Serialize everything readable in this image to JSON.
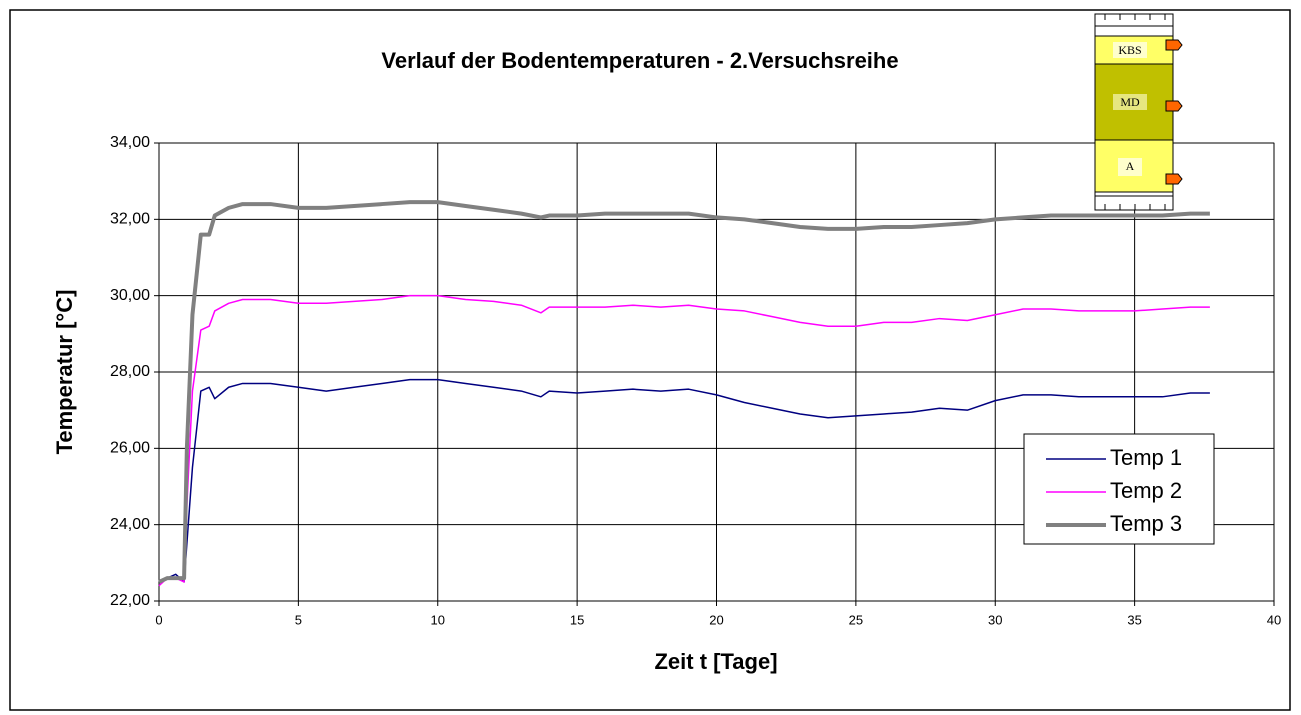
{
  "chart_data": {
    "type": "line",
    "title": "Verlauf der Bodentemperaturen - 2.Versuchsreihe",
    "x_label": "Zeit t [Tage]",
    "y_label": "Temperatur [°C]",
    "inset_labels": [
      "KBS",
      "MD",
      "A"
    ],
    "x": [
      0,
      0.3,
      0.6,
      0.9,
      1.0,
      1.2,
      1.5,
      1.8,
      2.0,
      2.5,
      3,
      4,
      5,
      6,
      7,
      8,
      9,
      10,
      11,
      12,
      13,
      13.7,
      14,
      15,
      16,
      17,
      18,
      19,
      20,
      21,
      22,
      23,
      24,
      25,
      26,
      27,
      28,
      29,
      30,
      31,
      32,
      33,
      34,
      35,
      36,
      37,
      37.7
    ],
    "series": [
      {
        "name": "Temp 1",
        "color": "#000080",
        "width": 1.5,
        "values": [
          22.5,
          22.6,
          22.7,
          22.5,
          23.5,
          25.5,
          27.5,
          27.6,
          27.3,
          27.6,
          27.7,
          27.7,
          27.6,
          27.5,
          27.6,
          27.7,
          27.8,
          27.8,
          27.7,
          27.6,
          27.5,
          27.35,
          27.5,
          27.45,
          27.5,
          27.55,
          27.5,
          27.55,
          27.4,
          27.2,
          27.05,
          26.9,
          26.8,
          26.85,
          26.9,
          26.95,
          27.05,
          27.0,
          27.25,
          27.4,
          27.4,
          27.35,
          27.35,
          27.35,
          27.35,
          27.45,
          27.45
        ]
      },
      {
        "name": "Temp 2",
        "color": "#ff00ff",
        "width": 1.5,
        "values": [
          22.4,
          22.6,
          22.6,
          22.5,
          24.5,
          27.5,
          29.1,
          29.2,
          29.6,
          29.8,
          29.9,
          29.9,
          29.8,
          29.8,
          29.85,
          29.9,
          30.0,
          30.0,
          29.9,
          29.85,
          29.75,
          29.55,
          29.7,
          29.7,
          29.7,
          29.75,
          29.7,
          29.75,
          29.65,
          29.6,
          29.45,
          29.3,
          29.2,
          29.2,
          29.3,
          29.3,
          29.4,
          29.35,
          29.5,
          29.65,
          29.65,
          29.6,
          29.6,
          29.6,
          29.65,
          29.7,
          29.7
        ]
      },
      {
        "name": "Temp 3",
        "color": "#808080",
        "width": 4,
        "values": [
          22.5,
          22.6,
          22.6,
          22.6,
          26.0,
          29.5,
          31.6,
          31.6,
          32.1,
          32.3,
          32.4,
          32.4,
          32.3,
          32.3,
          32.35,
          32.4,
          32.45,
          32.45,
          32.35,
          32.25,
          32.15,
          32.05,
          32.1,
          32.1,
          32.15,
          32.15,
          32.15,
          32.15,
          32.05,
          32.0,
          31.9,
          31.8,
          31.75,
          31.75,
          31.8,
          31.8,
          31.85,
          31.9,
          32.0,
          32.05,
          32.1,
          32.1,
          32.1,
          32.1,
          32.1,
          32.15,
          32.15
        ]
      }
    ],
    "xlim": [
      0,
      40
    ],
    "xticks": [
      0,
      5,
      10,
      15,
      20,
      25,
      30,
      35,
      40
    ],
    "ylim": [
      22,
      34
    ],
    "yticks": [
      {
        "value": 22,
        "label": "22,00"
      },
      {
        "value": 24,
        "label": "24,00"
      },
      {
        "value": 26,
        "label": "26,00"
      },
      {
        "value": 28,
        "label": "28,00"
      },
      {
        "value": 30,
        "label": "30,00"
      },
      {
        "value": 32,
        "label": "32,00"
      },
      {
        "value": 34,
        "label": "34,00"
      }
    ],
    "grid": true,
    "legend": "lower right"
  }
}
